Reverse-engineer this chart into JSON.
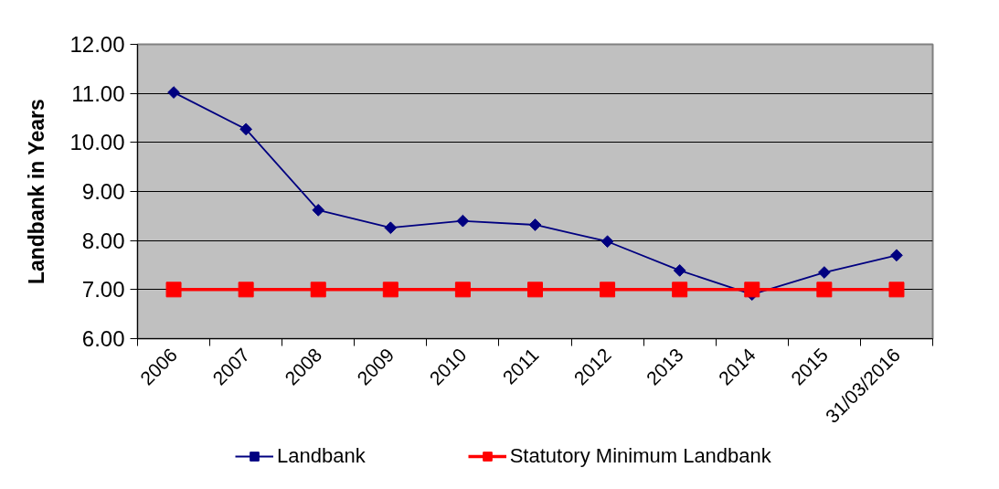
{
  "chart_data": {
    "type": "line",
    "ylabel": "Landbank in Years",
    "categories": [
      "2006",
      "2007",
      "2008",
      "2009",
      "2010",
      "2011",
      "2012",
      "2013",
      "2014",
      "2015",
      "31/03/2016"
    ],
    "series": [
      {
        "name": "Landbank",
        "color": "#000080",
        "marker": "diamond",
        "values": [
          11.02,
          10.27,
          8.62,
          8.26,
          8.4,
          8.32,
          7.98,
          7.39,
          6.9,
          7.35,
          7.7
        ]
      },
      {
        "name": "Statutory Minimum Landbank",
        "color": "#ff0000",
        "marker": "square",
        "values": [
          7,
          7,
          7,
          7,
          7,
          7,
          7,
          7,
          7,
          7,
          7
        ]
      }
    ],
    "ylim": [
      6,
      12
    ],
    "yticks": [
      {
        "value": 6,
        "label": "6.00"
      },
      {
        "value": 7,
        "label": "7.00"
      },
      {
        "value": 8,
        "label": "8.00"
      },
      {
        "value": 9,
        "label": "9.00"
      },
      {
        "value": 10,
        "label": "10.00"
      },
      {
        "value": 11,
        "label": "11.00"
      },
      {
        "value": 12,
        "label": "12.00"
      }
    ],
    "grid": "y",
    "legend": "bottom"
  }
}
